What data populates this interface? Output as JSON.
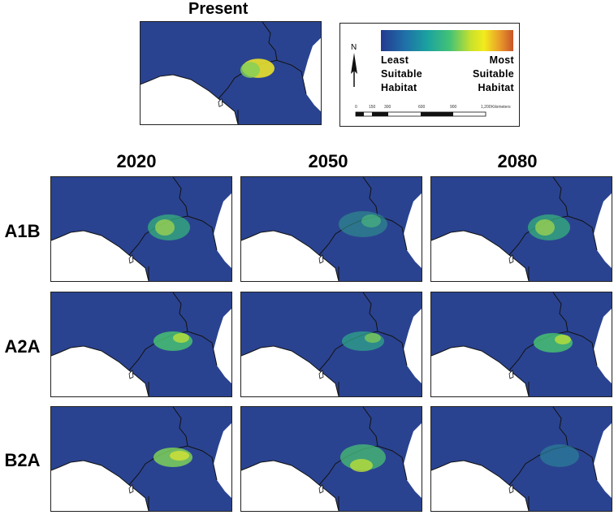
{
  "present_title": "Present",
  "columns": [
    "2020",
    "2050",
    "2080"
  ],
  "rows": [
    "A1B",
    "A2A",
    "B2A"
  ],
  "legend": {
    "least": [
      "Least",
      "Suitable",
      "Habitat"
    ],
    "most": [
      "Most",
      "Suitable",
      "Habitat"
    ],
    "north": "N",
    "scale_ticks": [
      "0",
      "150",
      "300",
      "600",
      "900",
      "1,200"
    ],
    "scale_unit": "Kilometers",
    "ramp_colors": [
      "#243a8f",
      "#1f6fa8",
      "#1aa2a0",
      "#43c276",
      "#c9e12c",
      "#f2ec1c",
      "#e99a2a",
      "#c8552a"
    ]
  },
  "colors": {
    "land": "#2a4390",
    "sea": "#ffffff",
    "border": "#111111"
  }
}
